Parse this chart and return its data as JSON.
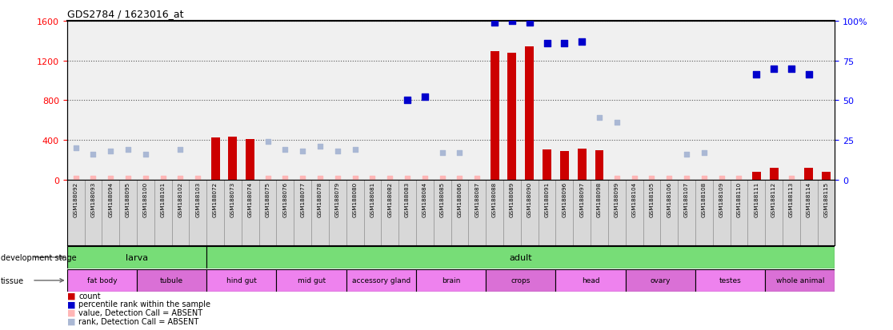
{
  "title": "GDS2784 / 1623016_at",
  "samples": [
    "GSM188092",
    "GSM188093",
    "GSM188094",
    "GSM188095",
    "GSM188100",
    "GSM188101",
    "GSM188102",
    "GSM188103",
    "GSM188072",
    "GSM188073",
    "GSM188074",
    "GSM188075",
    "GSM188076",
    "GSM188077",
    "GSM188078",
    "GSM188079",
    "GSM188080",
    "GSM188081",
    "GSM188082",
    "GSM188083",
    "GSM188084",
    "GSM188085",
    "GSM188086",
    "GSM188087",
    "GSM188088",
    "GSM188089",
    "GSM188090",
    "GSM188091",
    "GSM188096",
    "GSM188097",
    "GSM188098",
    "GSM188099",
    "GSM188104",
    "GSM188105",
    "GSM188106",
    "GSM188107",
    "GSM188108",
    "GSM188109",
    "GSM188110",
    "GSM188111",
    "GSM188112",
    "GSM188113",
    "GSM188114",
    "GSM188115"
  ],
  "count_present": [
    null,
    null,
    null,
    null,
    null,
    null,
    null,
    null,
    420,
    430,
    410,
    null,
    null,
    null,
    null,
    null,
    null,
    null,
    null,
    null,
    null,
    null,
    null,
    null,
    1290,
    1280,
    1340,
    300,
    290,
    310,
    295,
    null,
    null,
    null,
    null,
    null,
    null,
    null,
    null,
    80,
    115,
    null,
    115,
    80
  ],
  "count_absent": [
    5,
    5,
    5,
    5,
    5,
    5,
    5,
    5,
    null,
    null,
    null,
    5,
    5,
    5,
    5,
    5,
    5,
    5,
    5,
    5,
    5,
    5,
    5,
    5,
    null,
    null,
    null,
    null,
    null,
    null,
    null,
    5,
    5,
    5,
    5,
    5,
    5,
    5,
    5,
    null,
    null,
    5,
    null,
    null
  ],
  "rank_present": [
    null,
    null,
    null,
    null,
    null,
    null,
    null,
    null,
    null,
    null,
    null,
    null,
    null,
    null,
    null,
    null,
    null,
    null,
    null,
    50,
    52,
    null,
    null,
    null,
    99,
    100,
    99,
    86,
    86,
    87,
    null,
    null,
    null,
    null,
    null,
    null,
    null,
    null,
    null,
    66,
    70,
    70,
    66,
    null
  ],
  "rank_absent": [
    20,
    16,
    18,
    19,
    16,
    null,
    19,
    null,
    null,
    null,
    null,
    24,
    19,
    18,
    21,
    18,
    19,
    null,
    null,
    null,
    null,
    17,
    17,
    null,
    null,
    null,
    null,
    null,
    null,
    null,
    39,
    36,
    null,
    null,
    null,
    16,
    17,
    null,
    null,
    null,
    null,
    null,
    null,
    null
  ],
  "ylim_left": [
    0,
    1600
  ],
  "ylim_right": [
    0,
    100
  ],
  "yticks_left": [
    0,
    400,
    800,
    1200,
    1600
  ],
  "yticks_right": [
    0,
    25,
    50,
    75,
    100
  ],
  "dev_stage_groups": [
    {
      "label": "larva",
      "start": 0,
      "end": 8
    },
    {
      "label": "adult",
      "start": 8,
      "end": 44
    }
  ],
  "tissue_groups": [
    {
      "label": "fat body",
      "start": 0,
      "end": 4,
      "color": "#ee82ee"
    },
    {
      "label": "tubule",
      "start": 4,
      "end": 8,
      "color": "#da70d6"
    },
    {
      "label": "hind gut",
      "start": 8,
      "end": 12,
      "color": "#ee82ee"
    },
    {
      "label": "mid gut",
      "start": 12,
      "end": 16,
      "color": "#ee82ee"
    },
    {
      "label": "accessory gland",
      "start": 16,
      "end": 20,
      "color": "#ee82ee"
    },
    {
      "label": "brain",
      "start": 20,
      "end": 24,
      "color": "#ee82ee"
    },
    {
      "label": "crops",
      "start": 24,
      "end": 28,
      "color": "#da70d6"
    },
    {
      "label": "head",
      "start": 28,
      "end": 32,
      "color": "#ee82ee"
    },
    {
      "label": "ovary",
      "start": 32,
      "end": 36,
      "color": "#da70d6"
    },
    {
      "label": "testes",
      "start": 36,
      "end": 40,
      "color": "#ee82ee"
    },
    {
      "label": "whole animal",
      "start": 40,
      "end": 44,
      "color": "#da70d6"
    }
  ],
  "bar_color": "#cc0000",
  "dot_color": "#0000cc",
  "absent_count_color": "#ffb6b6",
  "absent_rank_color": "#aab8d4",
  "dev_stage_color": "#77dd77",
  "bg_color": "#ffffff",
  "grid_color": "#888888",
  "bar_width": 0.5,
  "dot_size": 35,
  "absent_dot_size": 25
}
